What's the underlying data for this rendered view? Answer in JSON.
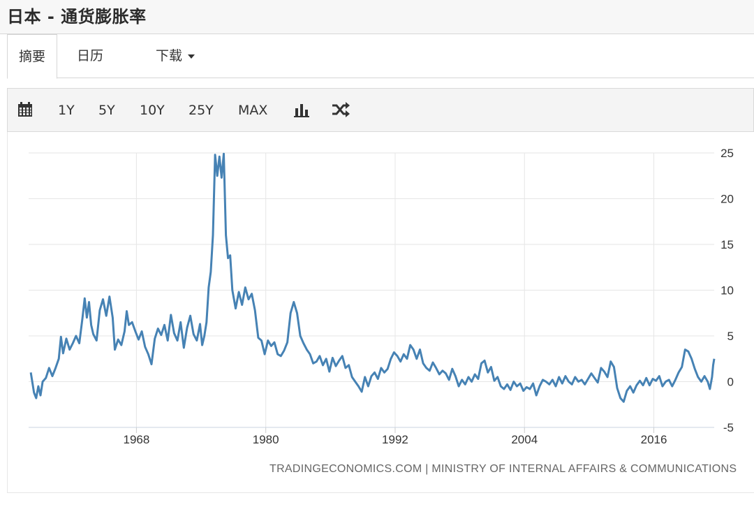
{
  "page": {
    "title": "日本 - 通货膨胀率"
  },
  "tabs": [
    {
      "label": "摘要"
    },
    {
      "label": "日历"
    },
    {
      "label": "下载"
    }
  ],
  "toolbar": {
    "ranges": [
      "1Y",
      "5Y",
      "10Y",
      "25Y",
      "MAX"
    ],
    "icons": [
      "calendar-icon",
      "bar-chart-icon",
      "shuffle-icon"
    ]
  },
  "credit": "TRADINGECONOMICS.COM  |  MINISTRY OF INTERNAL AFFAIRS & COMMUNICATIONS",
  "colors": {
    "line": "#4682b4",
    "grid": "#e6e6e6",
    "axis_text": "#333333"
  },
  "chart_data": {
    "type": "line",
    "title": "",
    "xlabel": "",
    "ylabel": "",
    "xlim": [
      1958.0,
      2021.6
    ],
    "ylim": [
      -5,
      25
    ],
    "x_ticks": [
      1968,
      1980,
      1992,
      2004,
      2016
    ],
    "y_ticks": [
      25,
      20,
      15,
      10,
      5,
      0,
      -5
    ],
    "grid": true,
    "y_axis_side": "right",
    "series": [
      {
        "values": [
          [
            1958.2,
            1.0
          ],
          [
            1958.5,
            -1.2
          ],
          [
            1958.7,
            -1.8
          ],
          [
            1958.9,
            -0.5
          ],
          [
            1959.1,
            -1.5
          ],
          [
            1959.3,
            0.0
          ],
          [
            1959.6,
            0.4
          ],
          [
            1959.9,
            1.5
          ],
          [
            1960.2,
            0.6
          ],
          [
            1960.5,
            1.5
          ],
          [
            1960.8,
            2.5
          ],
          [
            1961.0,
            4.9
          ],
          [
            1961.2,
            3.1
          ],
          [
            1961.5,
            4.7
          ],
          [
            1961.8,
            3.5
          ],
          [
            1962.1,
            4.2
          ],
          [
            1962.4,
            5.0
          ],
          [
            1962.7,
            4.2
          ],
          [
            1963.0,
            7.0
          ],
          [
            1963.2,
            9.1
          ],
          [
            1963.4,
            7.0
          ],
          [
            1963.6,
            8.7
          ],
          [
            1963.8,
            6.2
          ],
          [
            1964.0,
            5.2
          ],
          [
            1964.3,
            4.5
          ],
          [
            1964.6,
            7.8
          ],
          [
            1964.9,
            9.0
          ],
          [
            1965.2,
            7.2
          ],
          [
            1965.5,
            9.3
          ],
          [
            1965.8,
            7.0
          ],
          [
            1966.0,
            3.5
          ],
          [
            1966.3,
            4.6
          ],
          [
            1966.6,
            4.0
          ],
          [
            1966.9,
            5.5
          ],
          [
            1967.1,
            7.7
          ],
          [
            1967.3,
            6.2
          ],
          [
            1967.6,
            6.5
          ],
          [
            1967.9,
            5.5
          ],
          [
            1968.2,
            4.6
          ],
          [
            1968.5,
            5.5
          ],
          [
            1968.8,
            3.8
          ],
          [
            1969.1,
            3.0
          ],
          [
            1969.4,
            1.9
          ],
          [
            1969.7,
            4.7
          ],
          [
            1970.0,
            5.8
          ],
          [
            1970.3,
            5.1
          ],
          [
            1970.6,
            6.2
          ],
          [
            1970.9,
            4.5
          ],
          [
            1971.2,
            7.3
          ],
          [
            1971.5,
            5.3
          ],
          [
            1971.8,
            4.5
          ],
          [
            1972.1,
            6.5
          ],
          [
            1972.4,
            3.7
          ],
          [
            1972.7,
            5.9
          ],
          [
            1973.0,
            7.2
          ],
          [
            1973.3,
            5.2
          ],
          [
            1973.6,
            4.5
          ],
          [
            1973.9,
            6.3
          ],
          [
            1974.1,
            4.0
          ],
          [
            1974.3,
            5.0
          ],
          [
            1974.5,
            6.5
          ],
          [
            1974.7,
            10.3
          ],
          [
            1974.9,
            12.0
          ],
          [
            1975.1,
            16.0
          ],
          [
            1975.3,
            24.8
          ],
          [
            1975.5,
            22.5
          ],
          [
            1975.7,
            24.6
          ],
          [
            1975.9,
            22.3
          ],
          [
            1976.1,
            24.9
          ],
          [
            1976.3,
            16.0
          ],
          [
            1976.5,
            13.5
          ],
          [
            1976.7,
            13.8
          ],
          [
            1976.9,
            10.0
          ],
          [
            1977.2,
            8.0
          ],
          [
            1977.5,
            9.8
          ],
          [
            1977.8,
            8.4
          ],
          [
            1978.1,
            10.3
          ],
          [
            1978.4,
            9.0
          ],
          [
            1978.7,
            9.6
          ],
          [
            1979.0,
            7.8
          ],
          [
            1979.3,
            4.8
          ],
          [
            1979.6,
            4.5
          ],
          [
            1979.9,
            3.0
          ],
          [
            1980.2,
            4.5
          ],
          [
            1980.5,
            3.9
          ],
          [
            1980.8,
            4.3
          ],
          [
            1981.1,
            3.0
          ],
          [
            1981.4,
            2.8
          ],
          [
            1981.7,
            3.4
          ],
          [
            1982.0,
            4.3
          ],
          [
            1982.3,
            7.5
          ],
          [
            1982.6,
            8.7
          ],
          [
            1982.9,
            7.5
          ],
          [
            1983.2,
            5.0
          ],
          [
            1983.5,
            4.2
          ],
          [
            1983.8,
            3.5
          ],
          [
            1984.1,
            3.0
          ],
          [
            1984.4,
            2.0
          ],
          [
            1984.7,
            2.2
          ],
          [
            1985.0,
            2.8
          ],
          [
            1985.3,
            1.8
          ],
          [
            1985.6,
            2.5
          ],
          [
            1985.9,
            1.1
          ],
          [
            1986.2,
            2.6
          ],
          [
            1986.5,
            1.7
          ],
          [
            1986.8,
            2.3
          ],
          [
            1987.1,
            2.8
          ],
          [
            1987.4,
            1.5
          ],
          [
            1987.7,
            1.8
          ],
          [
            1988.0,
            0.5
          ],
          [
            1988.3,
            0.0
          ],
          [
            1988.6,
            -0.5
          ],
          [
            1988.9,
            -1.1
          ],
          [
            1989.2,
            0.5
          ],
          [
            1989.5,
            -0.5
          ],
          [
            1989.8,
            0.6
          ],
          [
            1990.1,
            1.0
          ],
          [
            1990.4,
            0.3
          ],
          [
            1990.7,
            1.5
          ],
          [
            1991.0,
            1.0
          ],
          [
            1991.3,
            1.4
          ],
          [
            1991.6,
            2.5
          ],
          [
            1991.9,
            3.2
          ],
          [
            1992.2,
            2.8
          ],
          [
            1992.5,
            2.2
          ],
          [
            1992.8,
            3.0
          ],
          [
            1993.1,
            2.5
          ],
          [
            1993.4,
            4.0
          ],
          [
            1993.7,
            3.5
          ],
          [
            1994.0,
            2.5
          ],
          [
            1994.3,
            3.5
          ],
          [
            1994.6,
            2.0
          ],
          [
            1994.9,
            1.5
          ],
          [
            1995.2,
            1.2
          ],
          [
            1995.5,
            2.1
          ],
          [
            1995.8,
            1.5
          ],
          [
            1996.1,
            0.8
          ],
          [
            1996.4,
            1.2
          ],
          [
            1996.7,
            0.9
          ],
          [
            1997.0,
            0.2
          ],
          [
            1997.3,
            1.4
          ],
          [
            1997.6,
            0.6
          ],
          [
            1997.9,
            -0.5
          ],
          [
            1998.2,
            0.2
          ],
          [
            1998.5,
            -0.3
          ],
          [
            1998.8,
            0.5
          ],
          [
            1999.1,
            0.0
          ],
          [
            1999.4,
            0.8
          ],
          [
            1999.7,
            0.3
          ],
          [
            2000.0,
            2.0
          ],
          [
            2000.3,
            2.3
          ],
          [
            2000.6,
            1.0
          ],
          [
            2000.9,
            1.6
          ],
          [
            2001.2,
            0.1
          ],
          [
            2001.5,
            0.5
          ],
          [
            2001.8,
            -0.5
          ],
          [
            2002.1,
            -0.8
          ],
          [
            2002.4,
            -0.3
          ],
          [
            2002.7,
            -0.9
          ],
          [
            2003.0,
            0.0
          ],
          [
            2003.3,
            -0.5
          ],
          [
            2003.6,
            -0.2
          ],
          [
            2003.9,
            -1.0
          ],
          [
            2004.2,
            -0.6
          ],
          [
            2004.5,
            -0.8
          ],
          [
            2004.8,
            -0.2
          ],
          [
            2005.1,
            -1.5
          ],
          [
            2005.4,
            -0.5
          ],
          [
            2005.7,
            0.2
          ],
          [
            2006.0,
            0.0
          ],
          [
            2006.3,
            -0.3
          ],
          [
            2006.6,
            0.2
          ],
          [
            2006.9,
            -0.5
          ],
          [
            2007.2,
            0.5
          ],
          [
            2007.5,
            -0.2
          ],
          [
            2007.8,
            0.6
          ],
          [
            2008.1,
            0.0
          ],
          [
            2008.4,
            -0.3
          ],
          [
            2008.7,
            0.5
          ],
          [
            2009.0,
            0.0
          ],
          [
            2009.3,
            0.2
          ],
          [
            2009.6,
            -0.3
          ],
          [
            2009.9,
            0.3
          ],
          [
            2010.2,
            0.9
          ],
          [
            2010.5,
            0.4
          ],
          [
            2010.8,
            -0.1
          ],
          [
            2011.1,
            1.5
          ],
          [
            2011.4,
            1.1
          ],
          [
            2011.7,
            0.5
          ],
          [
            2012.0,
            2.2
          ],
          [
            2012.3,
            1.6
          ],
          [
            2012.6,
            -0.7
          ],
          [
            2012.9,
            -1.8
          ],
          [
            2013.2,
            -2.2
          ],
          [
            2013.5,
            -1.0
          ],
          [
            2013.8,
            -0.5
          ],
          [
            2014.1,
            -1.2
          ],
          [
            2014.4,
            -0.4
          ],
          [
            2014.7,
            0.1
          ],
          [
            2015.0,
            -0.4
          ],
          [
            2015.3,
            0.4
          ],
          [
            2015.6,
            -0.4
          ],
          [
            2015.9,
            0.3
          ],
          [
            2016.2,
            0.1
          ],
          [
            2016.5,
            0.6
          ],
          [
            2016.8,
            -0.5
          ],
          [
            2017.1,
            0.0
          ],
          [
            2017.4,
            0.2
          ],
          [
            2017.7,
            -0.5
          ],
          [
            2018.0,
            0.2
          ],
          [
            2018.3,
            1.0
          ],
          [
            2018.6,
            1.6
          ],
          [
            2018.9,
            3.5
          ],
          [
            2019.2,
            3.3
          ],
          [
            2019.5,
            2.5
          ],
          [
            2019.8,
            1.4
          ],
          [
            2020.1,
            0.5
          ],
          [
            2020.4,
            0.0
          ],
          [
            2020.7,
            0.6
          ],
          [
            2021.0,
            0.0
          ],
          [
            2021.2,
            -0.8
          ],
          [
            2021.4,
            0.5
          ],
          [
            2021.5,
            1.8
          ],
          [
            2021.6,
            2.5
          ]
        ]
      }
    ]
  }
}
